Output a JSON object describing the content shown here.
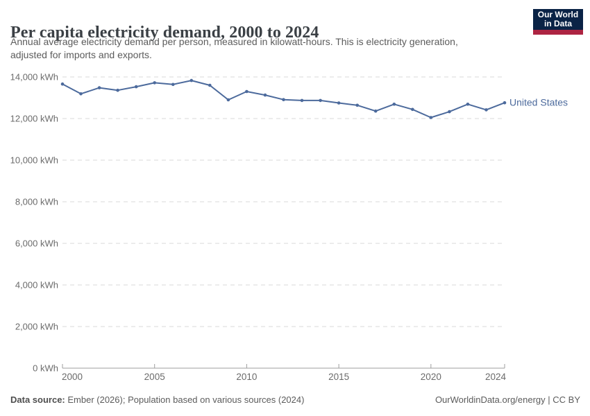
{
  "header": {
    "title": "Per capita electricity demand, 2000 to 2024",
    "subtitle_line1": "Annual average electricity demand per person, measured in kilowatt-hours. This is electricity generation,",
    "subtitle_line2": "adjusted for imports and exports.",
    "logo": {
      "line1": "Our World",
      "line2": "in Data",
      "bg_color": "#0A2346",
      "stripe_color": "#AD2442"
    }
  },
  "chart_data": {
    "type": "line",
    "title": "Per capita electricity demand, 2000 to 2024",
    "xlabel": "",
    "ylabel": "",
    "unit": "kWh",
    "grid": "horizontal-dashed",
    "legend_position": "end-of-line-label",
    "xlim": [
      2000,
      2024
    ],
    "ylim": [
      0,
      14000
    ],
    "x": [
      2000,
      2001,
      2002,
      2003,
      2004,
      2005,
      2006,
      2007,
      2008,
      2009,
      2010,
      2011,
      2012,
      2013,
      2014,
      2015,
      2016,
      2017,
      2018,
      2019,
      2020,
      2021,
      2022,
      2023,
      2024
    ],
    "series": [
      {
        "name": "United States",
        "color": "#4C6A9C",
        "values": [
          13660,
          13190,
          13480,
          13360,
          13530,
          13720,
          13640,
          13830,
          13600,
          12900,
          13300,
          13130,
          12910,
          12870,
          12870,
          12750,
          12640,
          12360,
          12690,
          12440,
          12050,
          12330,
          12690,
          12420,
          12760
        ]
      }
    ],
    "y_ticks": [
      {
        "value": 0,
        "label": "0 kWh"
      },
      {
        "value": 2000,
        "label": "2,000 kWh"
      },
      {
        "value": 4000,
        "label": "4,000 kWh"
      },
      {
        "value": 6000,
        "label": "6,000 kWh"
      },
      {
        "value": 8000,
        "label": "8,000 kWh"
      },
      {
        "value": 10000,
        "label": "10,000 kWh"
      },
      {
        "value": 12000,
        "label": "12,000 kWh"
      },
      {
        "value": 14000,
        "label": "14,000 kWh"
      }
    ],
    "x_ticks": [
      {
        "value": 2000,
        "label": "2000"
      },
      {
        "value": 2005,
        "label": "2005"
      },
      {
        "value": 2010,
        "label": "2010"
      },
      {
        "value": 2015,
        "label": "2015"
      },
      {
        "value": 2020,
        "label": "2020"
      },
      {
        "value": 2024,
        "label": "2024"
      }
    ],
    "style": {
      "gridline_color": "#d9d9d9",
      "axis_color": "#9e9e9e",
      "tick_label_color": "#6b6b6b"
    }
  },
  "footer": {
    "datasource_label": "Data source:",
    "datasource_text": " Ember (2026); Population based on various sources (2024)",
    "rights": "OurWorldinData.org/energy | CC BY"
  }
}
